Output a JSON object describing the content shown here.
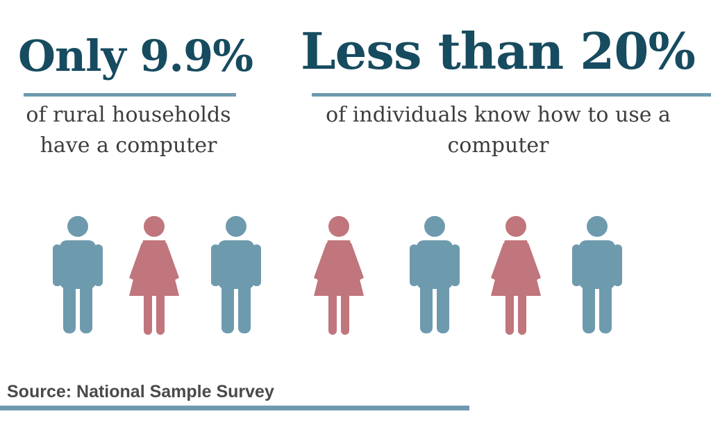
{
  "stats": [
    {
      "headline": "Only 9.9%",
      "caption_line1": "of rural households",
      "caption_line2": "have a computer"
    },
    {
      "headline": "Less than 20%",
      "caption_line1": "of individuals know how to use a",
      "caption_line2": "computer"
    }
  ],
  "people": [
    {
      "gender": "male",
      "icon": "male-figure-icon"
    },
    {
      "gender": "female",
      "icon": "female-figure-icon"
    },
    {
      "gender": "male",
      "icon": "male-figure-icon"
    },
    {
      "gender": "female",
      "icon": "female-figure-icon"
    },
    {
      "gender": "male",
      "icon": "male-figure-icon"
    },
    {
      "gender": "female",
      "icon": "female-figure-icon"
    },
    {
      "gender": "male",
      "icon": "male-figure-icon"
    }
  ],
  "colors": {
    "headline": "#174b5f",
    "accent_rule": "#6e9aae",
    "male": "#6e9aae",
    "female": "#c0767c"
  },
  "source": "Source: National Sample Survey"
}
